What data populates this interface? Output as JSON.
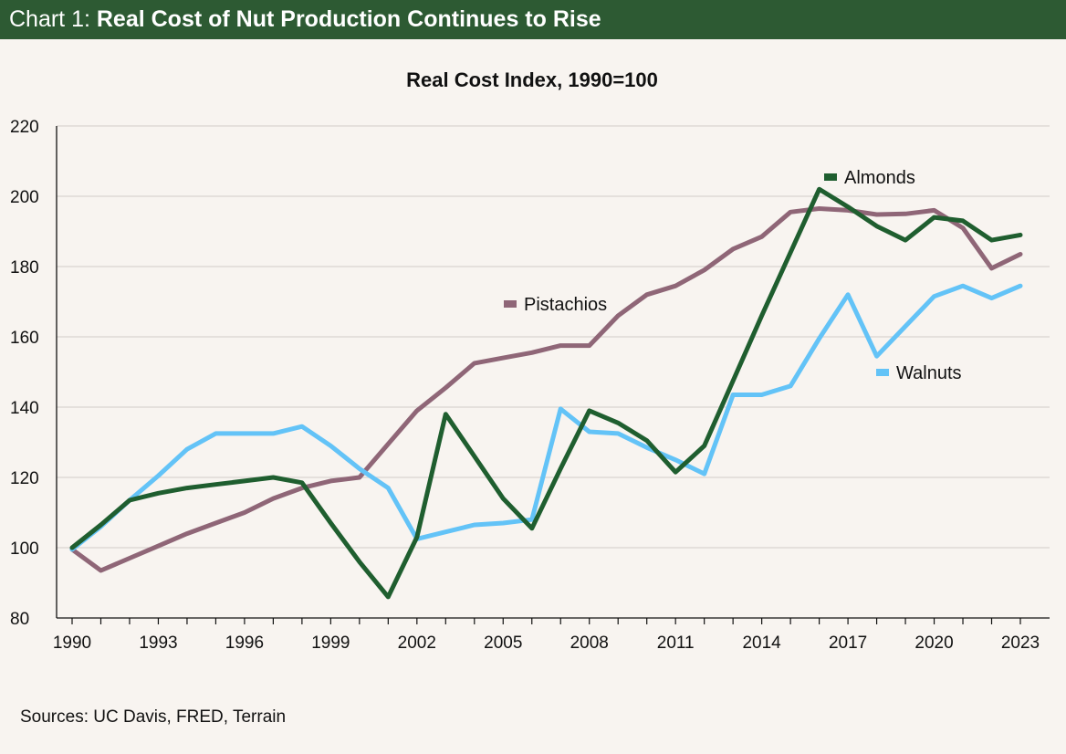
{
  "header": {
    "prefix": "Chart 1: ",
    "headline": "Real Cost of Nut Production Continues to Rise",
    "background_color": "#2d5a33"
  },
  "source": "Sources: UC Davis, FRED, Terrain",
  "chart_data": {
    "type": "line",
    "title": "Real Cost Index, 1990=100",
    "xlabel": "",
    "ylabel": "",
    "x": [
      1990,
      1991,
      1992,
      1993,
      1994,
      1995,
      1996,
      1997,
      1998,
      1999,
      2000,
      2001,
      2002,
      2003,
      2004,
      2005,
      2006,
      2007,
      2008,
      2009,
      2010,
      2011,
      2012,
      2013,
      2014,
      2015,
      2016,
      2017,
      2018,
      2019,
      2020,
      2021,
      2022,
      2023
    ],
    "x_ticks": [
      "1990",
      "1993",
      "1996",
      "1999",
      "2002",
      "2005",
      "2008",
      "2011",
      "2014",
      "2017",
      "2020",
      "2023"
    ],
    "ylim": [
      80,
      220
    ],
    "y_ticks": [
      80,
      100,
      120,
      140,
      160,
      180,
      200,
      220
    ],
    "grid": true,
    "series": [
      {
        "name": "Pistachios",
        "color": "#8f6677",
        "values": [
          99.5,
          93.5,
          97,
          100.5,
          104,
          107,
          110,
          114,
          117,
          119,
          120,
          129.5,
          139,
          145.5,
          152.5,
          154,
          155.5,
          157.5,
          157.5,
          166,
          172,
          174.5,
          179,
          185,
          188.5,
          195.5,
          196.5,
          196,
          194.8,
          195,
          196,
          191,
          179.5,
          183.5
        ]
      },
      {
        "name": "Walnuts",
        "color": "#63c3f7",
        "values": [
          99.5,
          106,
          113.5,
          120.5,
          128,
          132.5,
          132.5,
          132.5,
          134.5,
          129,
          122.5,
          117,
          102.5,
          104.5,
          106.5,
          107,
          108,
          139.5,
          133,
          132.5,
          128.5,
          125,
          121,
          143.5,
          143.5,
          146,
          159.5,
          172,
          154.5,
          163,
          171.5,
          174.5,
          171,
          174.5
        ]
      },
      {
        "name": "Almonds",
        "color": "#1f5e2f",
        "values": [
          100,
          106.5,
          113.5,
          115.5,
          117,
          118,
          119,
          120,
          118.5,
          107,
          96,
          86,
          103,
          138,
          126,
          114,
          105.5,
          122.5,
          139,
          135.5,
          130.5,
          121.5,
          129,
          147.5,
          166,
          184,
          202,
          197,
          191.5,
          187.5,
          194,
          193,
          187.5,
          189
        ]
      }
    ],
    "legend": [
      {
        "name": "Almonds",
        "placement": "top-right"
      },
      {
        "name": "Pistachios",
        "placement": "center-left"
      },
      {
        "name": "Walnuts",
        "placement": "right"
      }
    ]
  }
}
